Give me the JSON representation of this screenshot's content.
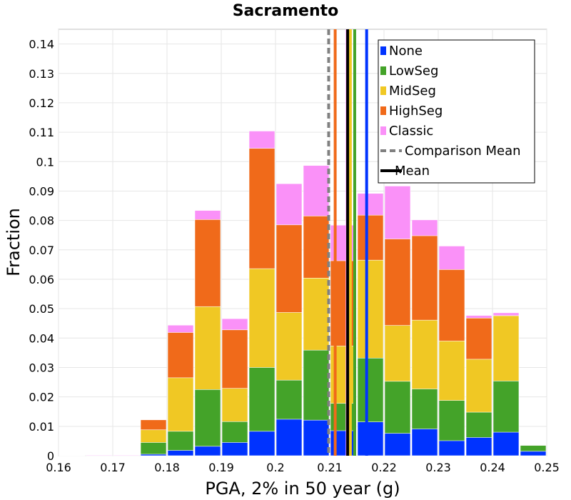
{
  "chart_data": {
    "type": "bar",
    "stacked": true,
    "title": "Sacramento",
    "xlabel": "PGA, 2% in 50 year (g)",
    "ylabel": "Fraction",
    "xlim": [
      0.16,
      0.25
    ],
    "ylim": [
      0,
      0.145
    ],
    "x_ticks": [
      "0.16",
      "0.17",
      "0.18",
      "0.19",
      "0.2",
      "0.21",
      "0.22",
      "0.23",
      "0.24",
      "0.25"
    ],
    "y_ticks": [
      "0",
      "0.01",
      "0.02",
      "0.03",
      "0.04",
      "0.05",
      "0.06",
      "0.07",
      "0.08",
      "0.09",
      "0.1",
      "0.11",
      "0.12",
      "0.13",
      "0.14"
    ],
    "grid": true,
    "legend_position": "top-right",
    "bin_width": 0.005,
    "bin_centers": [
      0.1625,
      0.1675,
      0.1725,
      0.1775,
      0.1825,
      0.1875,
      0.1925,
      0.1975,
      0.2025,
      0.2075,
      0.2125,
      0.2175,
      0.2225,
      0.2275,
      0.2325,
      0.2375,
      0.2425,
      0.2475
    ],
    "series": [
      {
        "name": "None",
        "color": "#0033ff",
        "cumulative": [
          0,
          0,
          0,
          0.0005,
          0.0018,
          0.0032,
          0.0045,
          0.0083,
          0.0124,
          0.0121,
          0.0085,
          0.0115,
          0.0076,
          0.0091,
          0.0051,
          0.0062,
          0.008,
          0.0015
        ]
      },
      {
        "name": "LowSeg",
        "color": "#44a329",
        "cumulative": [
          0,
          0,
          0,
          0.0045,
          0.0083,
          0.0225,
          0.0116,
          0.03,
          0.0257,
          0.0359,
          0.0178,
          0.0332,
          0.0253,
          0.0227,
          0.0188,
          0.0148,
          0.0254,
          0.0035
        ]
      },
      {
        "name": "MidSeg",
        "color": "#f0c824",
        "cumulative": [
          0,
          0,
          0,
          0.0088,
          0.0265,
          0.0507,
          0.0229,
          0.0636,
          0.0487,
          0.0604,
          0.0373,
          0.0665,
          0.0443,
          0.0461,
          0.039,
          0.0328,
          0.0476,
          0.0035
        ]
      },
      {
        "name": "HighSeg",
        "color": "#f06a1a",
        "cumulative": [
          0,
          0,
          0,
          0.0122,
          0.0419,
          0.0803,
          0.0428,
          0.1045,
          0.0785,
          0.0815,
          0.0663,
          0.0818,
          0.0737,
          0.0748,
          0.0633,
          0.0468,
          0.0476,
          0.0035
        ]
      },
      {
        "name": "Classic",
        "color": "#fa91f8",
        "cumulative": [
          0.0001,
          0.0002,
          0.0002,
          0.0122,
          0.0444,
          0.0834,
          0.0466,
          0.1104,
          0.0925,
          0.0987,
          0.0784,
          0.0892,
          0.0917,
          0.0802,
          0.0713,
          0.0477,
          0.0486,
          0.0035
        ]
      }
    ],
    "vertical_lines": [
      {
        "name": "None",
        "x": 0.2168,
        "color": "#0033ff",
        "style": "solid"
      },
      {
        "name": "LowSeg",
        "x": 0.2146,
        "color": "#44a329",
        "style": "solid"
      },
      {
        "name": "MidSeg",
        "x": 0.2138,
        "color": "#f0c824",
        "style": "solid"
      },
      {
        "name": "HighSeg",
        "x": 0.211,
        "color": "#f06a1a",
        "style": "solid"
      },
      {
        "name": "Classic",
        "x": 0.2132,
        "color": "#fa91f8",
        "style": "solid"
      },
      {
        "name": "Comparison Mean",
        "x": 0.2098,
        "color": "#808080",
        "style": "dashed"
      },
      {
        "name": "Mean",
        "x": 0.2133,
        "color": "#000000",
        "style": "solid"
      }
    ],
    "legend": [
      {
        "label": "None",
        "color": "#0033ff",
        "kind": "box"
      },
      {
        "label": "LowSeg",
        "color": "#44a329",
        "kind": "box"
      },
      {
        "label": "MidSeg",
        "color": "#f0c824",
        "kind": "box"
      },
      {
        "label": "HighSeg",
        "color": "#f06a1a",
        "kind": "box"
      },
      {
        "label": "Classic",
        "color": "#fa91f8",
        "kind": "box"
      },
      {
        "label": "Comparison Mean",
        "color": "#808080",
        "kind": "dashed-line"
      },
      {
        "label": "Mean",
        "color": "#000000",
        "kind": "line"
      }
    ]
  }
}
